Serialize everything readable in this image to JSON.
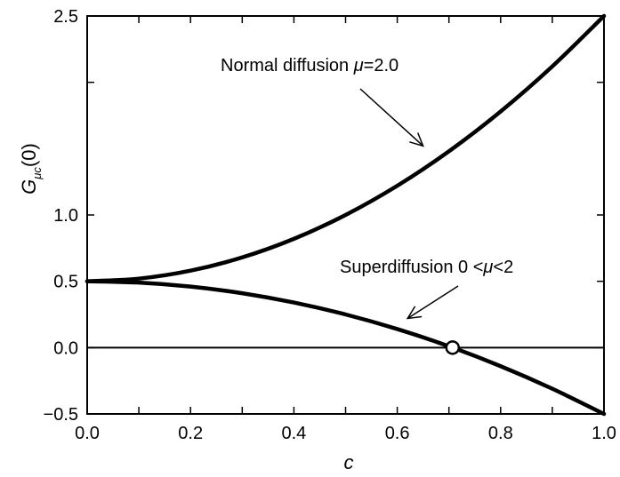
{
  "chart_data": {
    "type": "line",
    "title": "",
    "xlabel": "c",
    "ylabel": {
      "base": "G",
      "subscript_mu": "μ",
      "subscript_c": "c",
      "arg": "(0)"
    },
    "xlim": [
      0.0,
      1.0
    ],
    "ylim": [
      -0.5,
      2.5
    ],
    "x_ticks": [
      0.0,
      0.1,
      0.2,
      0.3,
      0.4,
      0.5,
      0.6,
      0.7,
      0.8,
      0.9,
      1.0
    ],
    "x_tick_labels": [
      {
        "value": 0.0,
        "label": "0.0"
      },
      {
        "value": 0.2,
        "label": "0.2"
      },
      {
        "value": 0.4,
        "label": "0.4"
      },
      {
        "value": 0.6,
        "label": "0.6"
      },
      {
        "value": 0.8,
        "label": "0.8"
      },
      {
        "value": 1.0,
        "label": "1.0"
      }
    ],
    "y_ticks": [
      -0.5,
      0.0,
      0.5,
      1.0,
      2.0,
      2.5
    ],
    "y_tick_labels": [
      {
        "value": -0.5,
        "label": "−0.5"
      },
      {
        "value": 0.0,
        "label": "0.0"
      },
      {
        "value": 0.5,
        "label": "0.5"
      },
      {
        "value": 1.0,
        "label": "1.0"
      },
      {
        "value": 2.5,
        "label": "2.5"
      }
    ],
    "grid": false,
    "reference_lines": [
      {
        "y": 0.0
      }
    ],
    "series": [
      {
        "x": [
          0.0,
          0.1,
          0.2,
          0.3,
          0.4,
          0.5,
          0.6,
          0.7,
          0.8,
          0.9,
          1.0
        ],
        "y": [
          0.5,
          0.52,
          0.58,
          0.68,
          0.82,
          1.0,
          1.22,
          1.48,
          1.78,
          2.12,
          2.5
        ]
      },
      {
        "x": [
          0.0,
          0.1,
          0.2,
          0.3,
          0.4,
          0.5,
          0.6,
          0.7,
          0.8,
          0.9,
          1.0
        ],
        "y": [
          0.5,
          0.49,
          0.46,
          0.41,
          0.34,
          0.25,
          0.14,
          0.01,
          -0.14,
          -0.31,
          -0.5
        ]
      }
    ],
    "markers": [
      {
        "x": 0.707,
        "y": 0.0,
        "style": "open-circle"
      }
    ],
    "annotations": [
      {
        "prefix": "Normal diffusion ",
        "symbol": "μ",
        "suffix": "=2.0",
        "arrow_to": {
          "x": 0.65,
          "y": 1.52
        }
      },
      {
        "prefix": "Superdiffusion 0 <",
        "symbol": "μ",
        "suffix": "<2",
        "arrow_to": {
          "x": 0.62,
          "y": 0.22
        }
      }
    ]
  }
}
